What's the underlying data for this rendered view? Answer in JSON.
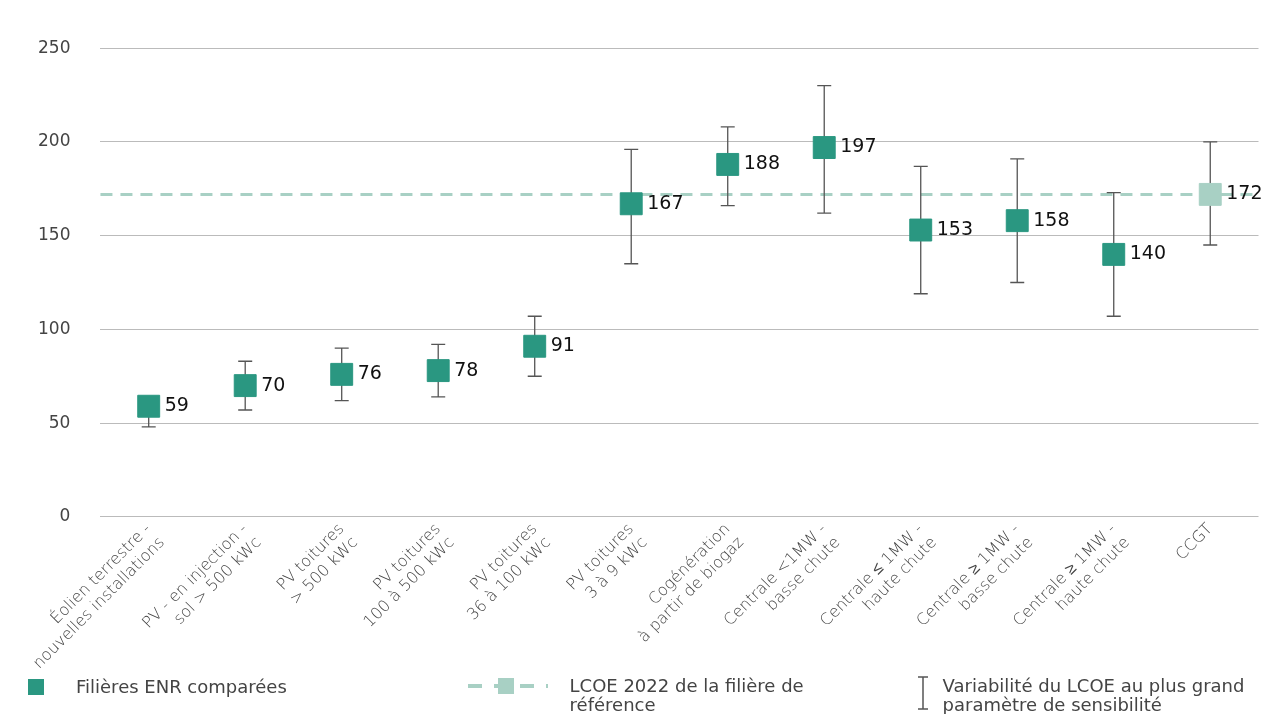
{
  "chart_data": {
    "type": "scatter",
    "categories": [
      "Éolien terrestre -\nnouvelles installations",
      "PV - en injection -\nsol > 500 kWc",
      "PV toitures\n> 500 kWc",
      "PV toitures\n100 à 500 kWc",
      "PV toitures\n36 à 100 kWc",
      "PV toitures\n3 à 9 kWc",
      "Cogénération\nà partir de biogaz",
      "Centrale <1MW -\nbasse chute",
      "Centrale ≤ 1MW -\nhaute chute",
      "Centrale ≥ 1MW -\nbasse chute",
      "Centrale ≥ 1MW -\nhaute chute",
      "CCGT"
    ],
    "series": [
      {
        "name": "Filières ENR comparées",
        "color": "#2a9781",
        "colors": [
          "#2a9781",
          "#2a9781",
          "#2a9781",
          "#2a9781",
          "#2a9781",
          "#2a9781",
          "#2a9781",
          "#2a9781",
          "#2a9781",
          "#2a9781",
          "#2a9781",
          "#a8d0c4"
        ],
        "values": [
          59,
          70,
          76,
          78,
          91,
          167,
          188,
          197,
          153,
          158,
          140,
          172
        ],
        "errors": [
          [
            48,
            64
          ],
          [
            57,
            83
          ],
          [
            62,
            90
          ],
          [
            64,
            92
          ],
          [
            75,
            107
          ],
          [
            135,
            196
          ],
          [
            166,
            208
          ],
          [
            162,
            230
          ],
          [
            119,
            187
          ],
          [
            125,
            191
          ],
          [
            107,
            173
          ],
          [
            145,
            200
          ]
        ]
      }
    ],
    "ylim": [
      0,
      250
    ],
    "yticks": [
      0,
      50,
      100,
      150,
      200,
      250
    ],
    "grid": "y",
    "marker": "square",
    "data_labels": true,
    "legend": "bottom",
    "ref_lines": [
      {
        "axis": "y",
        "value": 172,
        "label": "LCOE 2022 de la filière de référence",
        "color": "#a8d0c4",
        "line_style": "dashed"
      }
    ],
    "annotations": [
      "Variabilité du LCOE au plus grand paramètre de sensibilité"
    ]
  }
}
